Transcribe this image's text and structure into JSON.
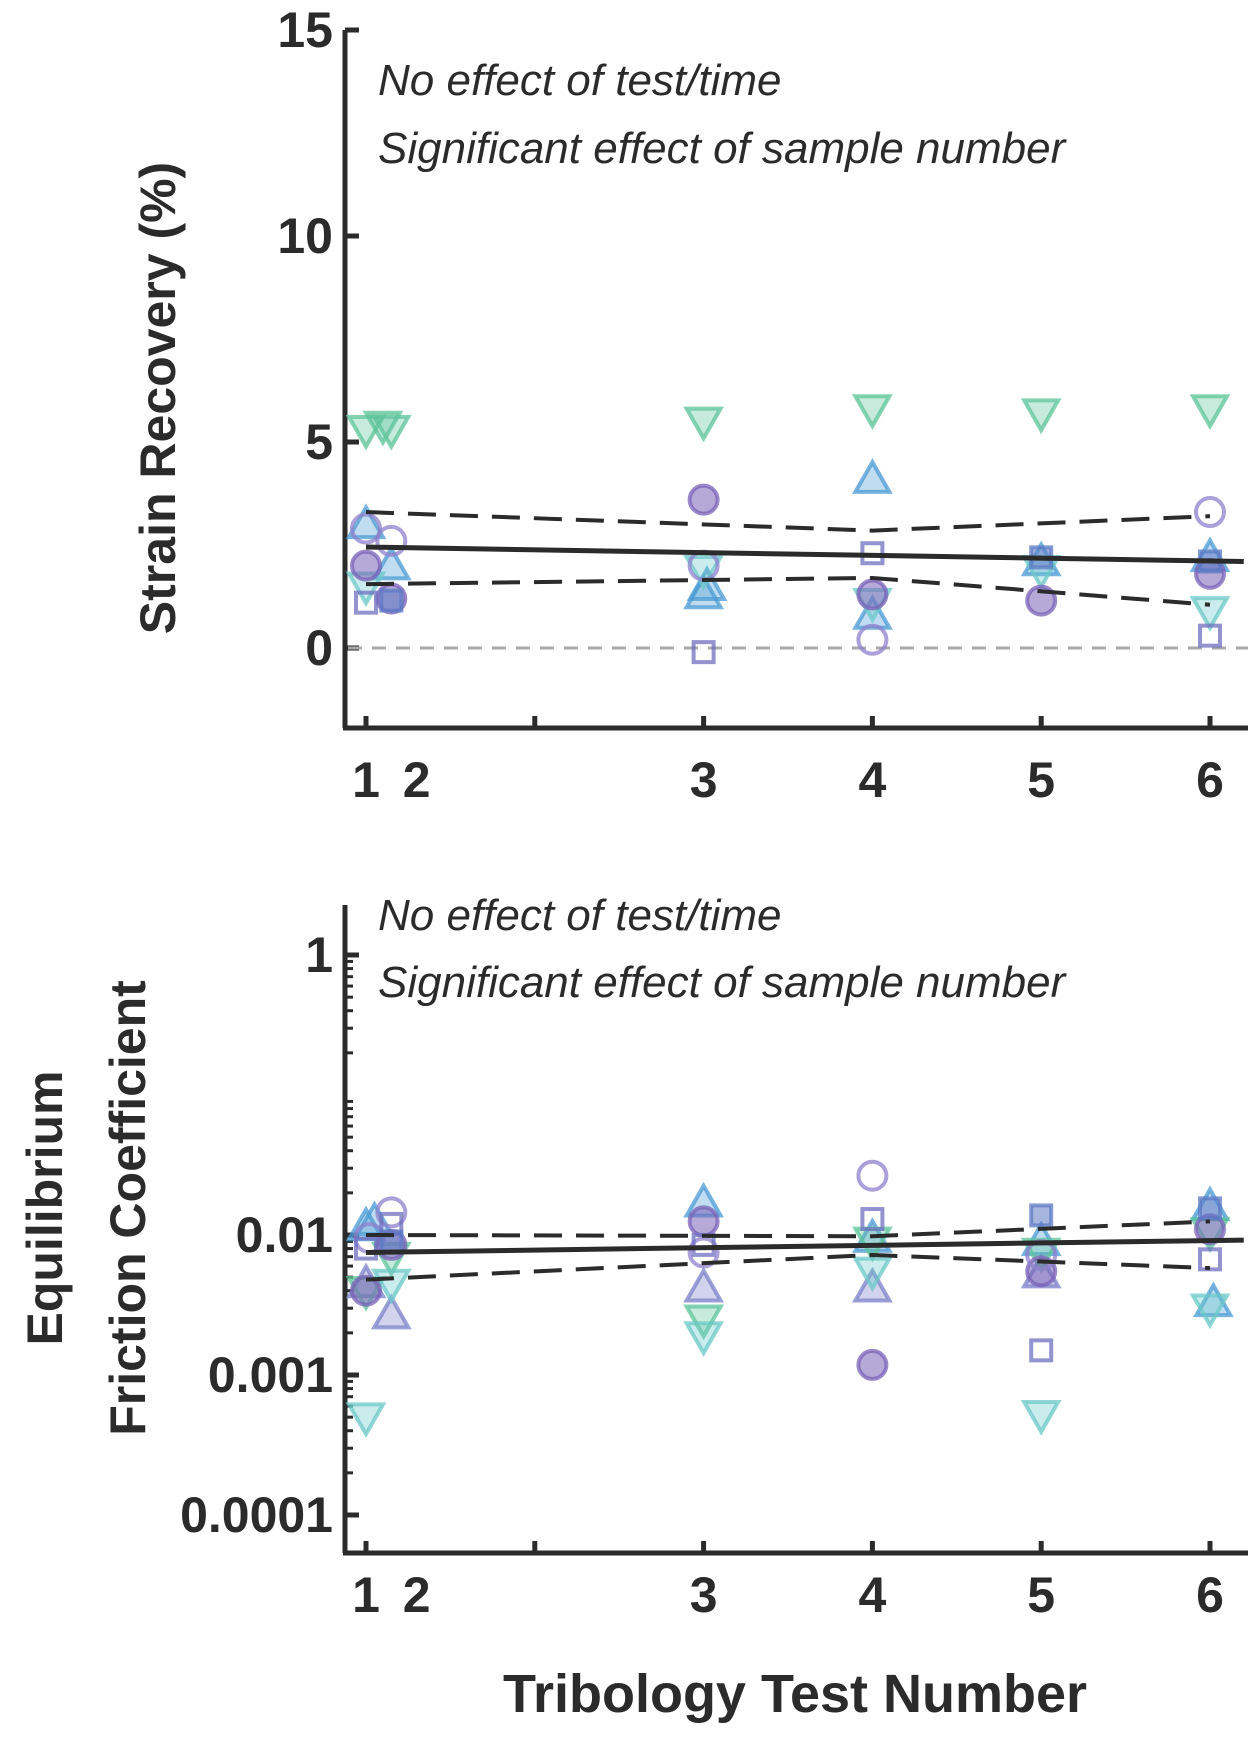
{
  "chart_data": [
    {
      "type": "scatter",
      "title": "",
      "xlabel": "",
      "ylabel": "Strain Recovery (%)",
      "xlim": [
        0.85,
        6.2
      ],
      "ylim": [
        -2,
        15
      ],
      "yscale": "linear",
      "xticks": [
        1,
        2,
        3,
        4,
        5,
        6
      ],
      "xtick_labels": [
        "1",
        "2",
        "3",
        "4",
        "5",
        "6"
      ],
      "xtick_pos": [
        1,
        1.3,
        3,
        4,
        5,
        6
      ],
      "yticks": [
        0,
        5,
        10,
        15
      ],
      "ytick_labels": [
        "0",
        "5",
        "10",
        "15"
      ],
      "grid": false,
      "legend": "none",
      "annotations": [
        "No effect of test/time",
        "Significant effect of sample number"
      ],
      "zero_line": 0,
      "fit": {
        "x": [
          1,
          6.2
        ],
        "y": [
          2.45,
          2.1
        ]
      },
      "ci_upper": {
        "x": [
          1,
          4,
          6
        ],
        "y": [
          3.3,
          2.85,
          3.2
        ]
      },
      "ci_lower": {
        "x": [
          1,
          4,
          6
        ],
        "y": [
          1.55,
          1.7,
          1.05
        ]
      },
      "series": [
        {
          "marker": "triangle-down",
          "color": "#5cc49a",
          "x": [
            1,
            1.1,
            1.15,
            3,
            4,
            5,
            6
          ],
          "y": [
            5.3,
            5.4,
            5.3,
            5.5,
            5.8,
            5.7,
            5.8
          ]
        },
        {
          "marker": "triangle-up",
          "color": "#4a9bd4",
          "x": [
            1,
            1.15,
            3,
            3.02,
            4,
            4,
            5,
            6
          ],
          "y": [
            3.0,
            2.0,
            1.3,
            1.5,
            4.1,
            0.8,
            2.1,
            2.2
          ]
        },
        {
          "marker": "triangle-down",
          "color": "#6bc8c8",
          "x": [
            1,
            3,
            4,
            5,
            6
          ],
          "y": [
            1.5,
            1.9,
            1.1,
            1.9,
            0.9
          ]
        },
        {
          "marker": "circle-filled",
          "color": "#7a62b8",
          "x": [
            1,
            1.15,
            3,
            4,
            5,
            6
          ],
          "y": [
            2.0,
            1.2,
            3.6,
            1.3,
            1.15,
            1.8
          ]
        },
        {
          "marker": "circle-open",
          "color": "#8f80cc",
          "x": [
            1,
            1.15,
            3,
            4,
            6
          ],
          "y": [
            2.9,
            2.6,
            2.0,
            0.2,
            3.3
          ]
        },
        {
          "marker": "square-open",
          "color": "#6f6fc0",
          "x": [
            1,
            3,
            4,
            6
          ],
          "y": [
            1.1,
            -0.1,
            2.3,
            0.3
          ]
        },
        {
          "marker": "square-filled",
          "color": "#5c7ac4",
          "x": [
            1.15,
            5,
            6
          ],
          "y": [
            1.15,
            2.2,
            2.1
          ]
        }
      ]
    },
    {
      "type": "scatter",
      "title": "",
      "xlabel": "Tribology Test Number",
      "ylabel": [
        "Equilibrium",
        "Friction Coefficient"
      ],
      "xlim": [
        0.85,
        6.2
      ],
      "ylim": [
        6e-05,
        1.6
      ],
      "yscale": "log",
      "xticks": [
        1,
        2,
        3,
        4,
        5,
        6
      ],
      "xtick_labels": [
        "1",
        "2",
        "3",
        "4",
        "5",
        "6"
      ],
      "xtick_pos": [
        1,
        1.3,
        3,
        4,
        5,
        6
      ],
      "yticks": [
        0.0001,
        0.001,
        0.01,
        1
      ],
      "ytick_labels": [
        "0.0001",
        "0.001",
        "0.01",
        "1"
      ],
      "grid": false,
      "legend": "none",
      "annotations": [
        "No effect of test/time",
        "Significant effect of sample number"
      ],
      "fit": {
        "x": [
          1,
          6.2
        ],
        "y": [
          0.0075,
          0.0092
        ]
      },
      "ci_upper": {
        "x": [
          1,
          4,
          6
        ],
        "y": [
          0.01,
          0.0098,
          0.0125
        ]
      },
      "ci_lower": {
        "x": [
          1,
          4,
          6
        ],
        "y": [
          0.0048,
          0.0072,
          0.0058
        ]
      },
      "series": [
        {
          "marker": "triangle-up",
          "color": "#4a9bd4",
          "x": [
            1,
            1.05,
            3,
            4,
            5,
            6,
            6.02
          ],
          "y": [
            0.0115,
            0.0125,
            0.017,
            0.0095,
            0.009,
            0.016,
            0.0033
          ]
        },
        {
          "marker": "triangle-up",
          "color": "#7a80c8",
          "x": [
            1,
            1.15,
            3,
            4,
            5
          ],
          "y": [
            0.0045,
            0.0027,
            0.0042,
            0.0042,
            0.0053
          ]
        },
        {
          "marker": "triangle-down",
          "color": "#5cc49a",
          "x": [
            1,
            1.15,
            3,
            4,
            5,
            6
          ],
          "y": [
            0.004,
            0.007,
            0.0025,
            0.009,
            0.0075,
            0.0105
          ]
        },
        {
          "marker": "triangle-down",
          "color": "#6bc8c8",
          "x": [
            1,
            1.15,
            3,
            4,
            5,
            6
          ],
          "y": [
            0.0005,
            0.0045,
            0.0019,
            0.0055,
            0.00052,
            0.003
          ]
        },
        {
          "marker": "circle-filled",
          "color": "#7a62b8",
          "x": [
            1,
            1.15,
            3,
            4,
            5,
            6
          ],
          "y": [
            0.004,
            0.0085,
            0.0125,
            0.00118,
            0.0055,
            0.011
          ]
        },
        {
          "marker": "circle-open",
          "color": "#8f80cc",
          "x": [
            1.15,
            1.02,
            3,
            4,
            5
          ],
          "y": [
            0.0145,
            0.0095,
            0.0075,
            0.0265,
            0.0072
          ]
        },
        {
          "marker": "square-open",
          "color": "#6f6fc0",
          "x": [
            1,
            1.15,
            3,
            4,
            5,
            6
          ],
          "y": [
            0.008,
            0.012,
            0.0085,
            0.013,
            0.0015,
            0.0067
          ]
        },
        {
          "marker": "square-filled",
          "color": "#5c7ac4",
          "x": [
            1.15,
            5,
            6
          ],
          "y": [
            0.009,
            0.0138,
            0.0155
          ]
        }
      ]
    }
  ],
  "colors": {
    "axis": "#2b2b2b",
    "fit": "#2b2b2b",
    "zero_line": "#aaaaaa",
    "background": "#ffffff"
  }
}
